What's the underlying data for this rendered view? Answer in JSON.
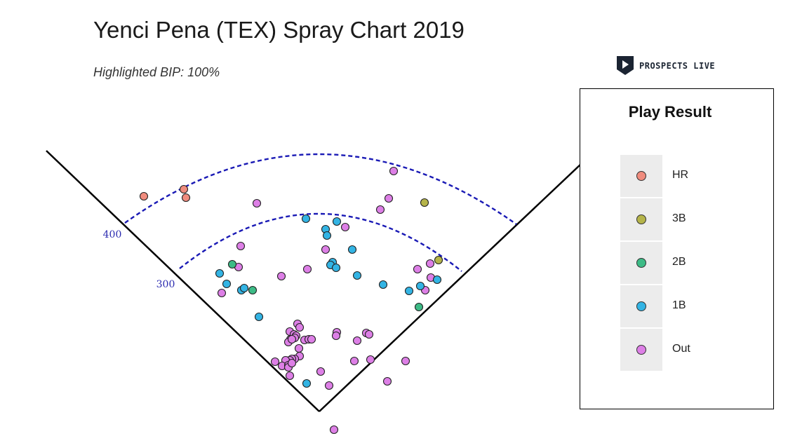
{
  "title": "Yenci Pena (TEX) Spray Chart 2019",
  "subtitle": "Highlighted BIP: 100%",
  "brand": {
    "name": "PROSPECTS LIVE",
    "icon": "play-shield-icon"
  },
  "legend": {
    "title": "Play Result",
    "items": [
      {
        "label": "HR",
        "color": "#f08c7e"
      },
      {
        "label": "3B",
        "color": "#b5b44a"
      },
      {
        "label": "2B",
        "color": "#3dbb86"
      },
      {
        "label": "1B",
        "color": "#33b4e4"
      },
      {
        "label": "Out",
        "color": "#dd7fe6"
      }
    ]
  },
  "chart_data": {
    "type": "scatter",
    "title": "Yenci Pena (TEX) Spray Chart 2019",
    "subtitle": "Highlighted BIP: 100%",
    "distance_arcs": [
      {
        "label": "300",
        "value": 300
      },
      {
        "label": "400",
        "value": 400
      }
    ],
    "series": [
      {
        "name": "HR",
        "points": [
          [
            205,
            280
          ],
          [
            262,
            270
          ],
          [
            265,
            282
          ]
        ]
      },
      {
        "name": "3B",
        "points": [
          [
            605,
            289
          ],
          [
            625,
            371
          ]
        ]
      },
      {
        "name": "2B",
        "points": [
          [
            331,
            377
          ],
          [
            360,
            414
          ],
          [
            597,
            438
          ]
        ]
      },
      {
        "name": "1B",
        "points": [
          [
            436,
            312
          ],
          [
            480,
            316
          ],
          [
            464,
            327
          ],
          [
            466,
            336
          ],
          [
            502,
            356
          ],
          [
            474,
            374
          ],
          [
            471,
            378
          ],
          [
            479,
            382
          ],
          [
            313,
            390
          ],
          [
            509,
            393
          ],
          [
            323,
            405
          ],
          [
            344,
            414
          ],
          [
            348,
            411
          ],
          [
            546,
            406
          ],
          [
            599,
            408
          ],
          [
            583,
            415
          ],
          [
            623,
            399
          ],
          [
            369,
            452
          ],
          [
            437,
            547
          ]
        ]
      },
      {
        "name": "Out",
        "points": [
          [
            561,
            244
          ],
          [
            554,
            283
          ],
          [
            542,
            299
          ],
          [
            366,
            290
          ],
          [
            492,
            324
          ],
          [
            343,
            351
          ],
          [
            464,
            356
          ],
          [
            340,
            381
          ],
          [
            438,
            384
          ],
          [
            595,
            384
          ],
          [
            613,
            376
          ],
          [
            401,
            394
          ],
          [
            614,
            396
          ],
          [
            606,
            414
          ],
          [
            316,
            418
          ],
          [
            424,
            462
          ],
          [
            427,
            467
          ],
          [
            413,
            473
          ],
          [
            419,
            477
          ],
          [
            422,
            479
          ],
          [
            414,
            484
          ],
          [
            420,
            482
          ],
          [
            480,
            474
          ],
          [
            479,
            479
          ],
          [
            522,
            475
          ],
          [
            526,
            477
          ],
          [
            434,
            485
          ],
          [
            440,
            484
          ],
          [
            444,
            484
          ],
          [
            411,
            488
          ],
          [
            416,
            484
          ],
          [
            426,
            497
          ],
          [
            509,
            486
          ],
          [
            427,
            508
          ],
          [
            420,
            512
          ],
          [
            416,
            512
          ],
          [
            413,
            514
          ],
          [
            411,
            518
          ],
          [
            407,
            514
          ],
          [
            392,
            516
          ],
          [
            402,
            522
          ],
          [
            411,
            521
          ],
          [
            411,
            524
          ],
          [
            416,
            518
          ],
          [
            505,
            515
          ],
          [
            528,
            513
          ],
          [
            578,
            515
          ],
          [
            457,
            530
          ],
          [
            413,
            536
          ],
          [
            552,
            544
          ],
          [
            469,
            550
          ],
          [
            476,
            613
          ]
        ]
      }
    ]
  }
}
